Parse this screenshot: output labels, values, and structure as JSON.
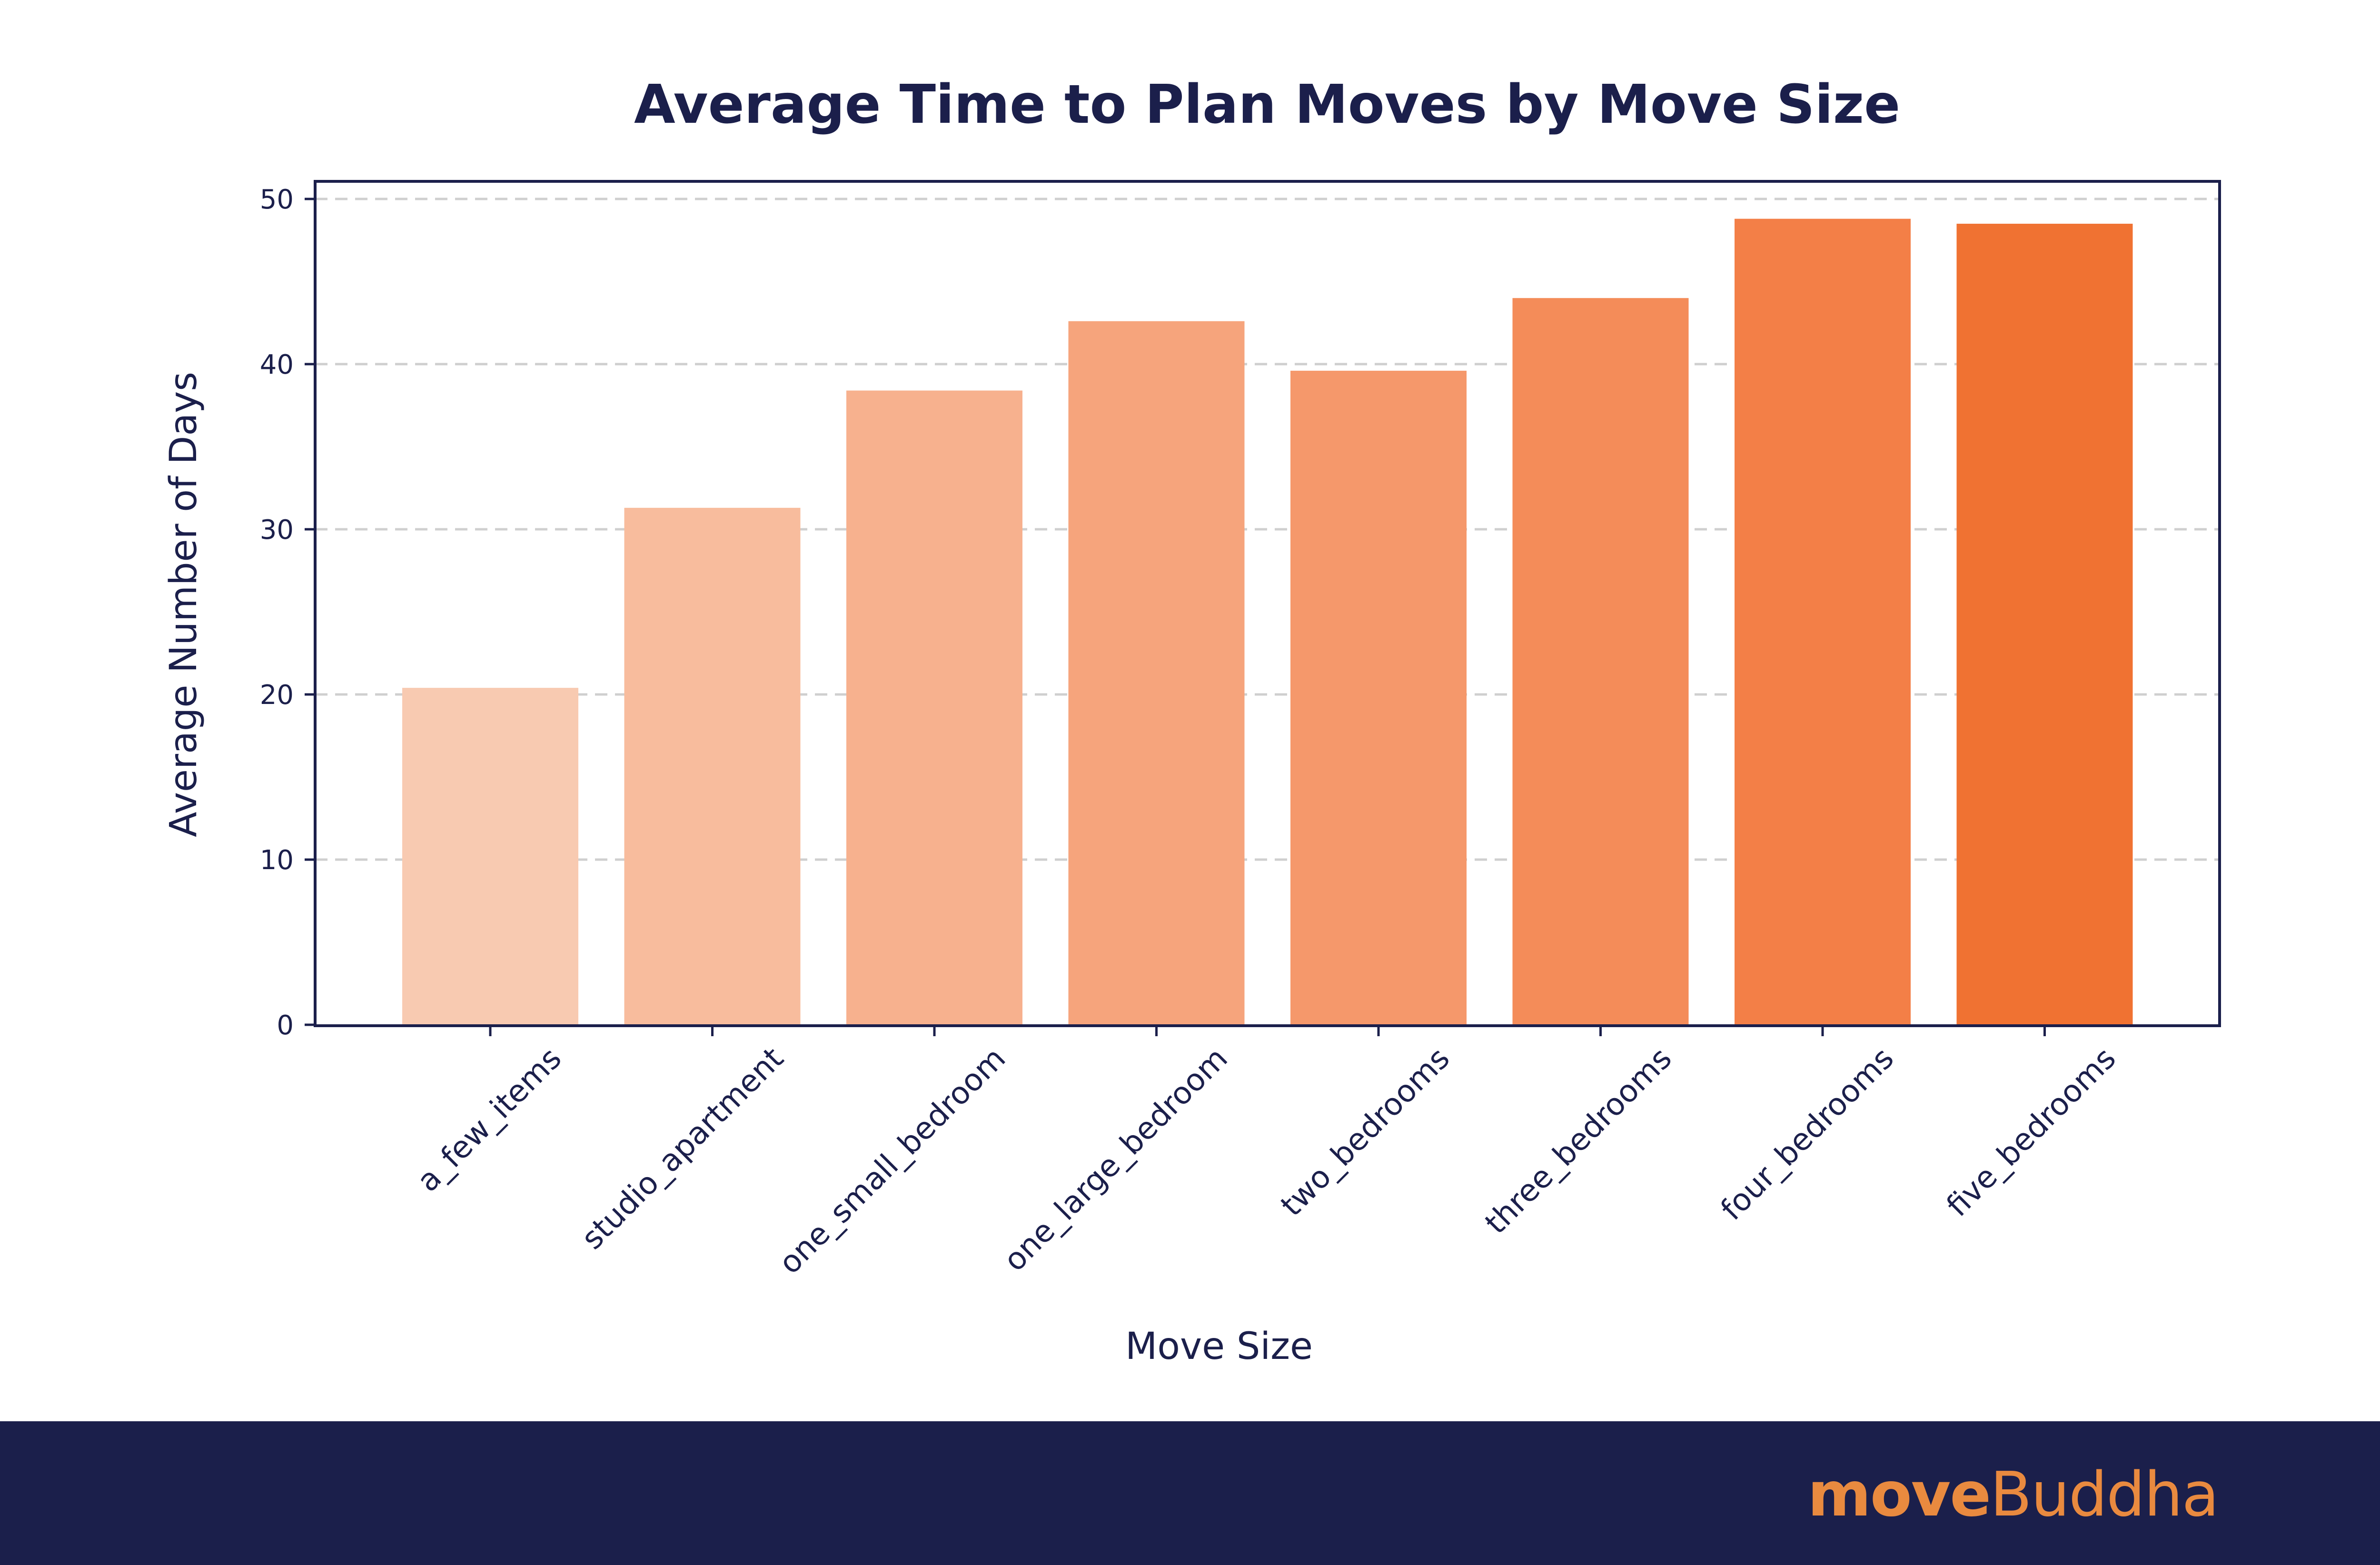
{
  "chart_data": {
    "type": "bar",
    "title": "Average Time to Plan Moves by Move Size",
    "xlabel": "Move Size",
    "ylabel": "Average Number of Days",
    "categories": [
      "a_few_items",
      "studio_apartment",
      "one_small_bedroom",
      "one_large_bedroom",
      "two_bedrooms",
      "three_bedrooms",
      "four_bedrooms",
      "five_bedrooms"
    ],
    "values": [
      20.4,
      31.3,
      38.4,
      42.6,
      39.6,
      44.0,
      48.8,
      48.5
    ],
    "ylim": [
      0,
      50
    ],
    "yticks": [
      0,
      10,
      20,
      30,
      40,
      50
    ],
    "grid": true,
    "legend": "none",
    "colors": [
      "#f8cab1",
      "#f8bc9d",
      "#f7b18e",
      "#f6a47c",
      "#f5986b",
      "#f48c59",
      "#f37f47",
      "#f07232"
    ]
  },
  "brand": {
    "prefix": "move",
    "suffix": "Buddha",
    "color": "#e98a3f",
    "footer_color": "#1b1f4b"
  }
}
